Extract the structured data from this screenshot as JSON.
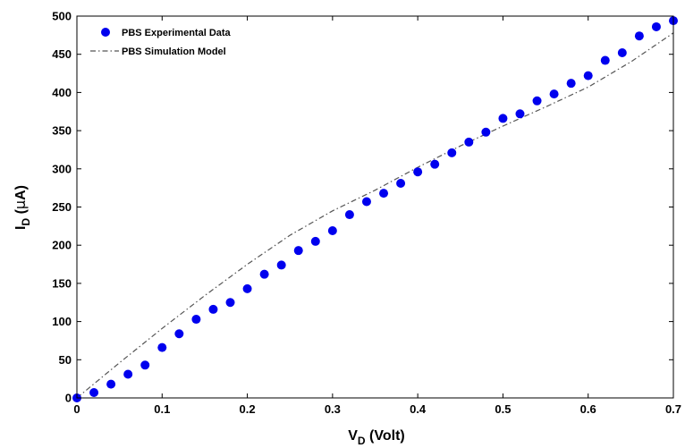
{
  "chart_data": {
    "type": "scatter",
    "title": "",
    "xlabel": {
      "main": "V",
      "sub": "D",
      "rest": " (Volt)"
    },
    "ylabel": {
      "main": "I",
      "sub": "D",
      "rest": " (",
      "mu": "μ",
      "unit": "A)"
    },
    "xlim": [
      0,
      0.7
    ],
    "ylim": [
      0,
      500
    ],
    "xticks": [
      0,
      0.1,
      0.2,
      0.3,
      0.4,
      0.5,
      0.6,
      0.7
    ],
    "xtick_labels": [
      "0",
      "0.1",
      "0.2",
      "0.3",
      "0.4",
      "0.5",
      "0.6",
      "0.7"
    ],
    "yticks": [
      0,
      50,
      100,
      150,
      200,
      250,
      300,
      350,
      400,
      450,
      500
    ],
    "ytick_labels": [
      "0",
      "50",
      "100",
      "150",
      "200",
      "250",
      "300",
      "350",
      "400",
      "450",
      "500"
    ],
    "grid": false,
    "legend_position": "top-left",
    "series": [
      {
        "name": "PBS Experimental Data",
        "type": "scatter",
        "color": "#0000ee",
        "x": [
          0,
          0.02,
          0.04,
          0.06,
          0.08,
          0.1,
          0.12,
          0.14,
          0.16,
          0.18,
          0.2,
          0.22,
          0.24,
          0.26,
          0.28,
          0.3,
          0.32,
          0.34,
          0.36,
          0.38,
          0.4,
          0.42,
          0.44,
          0.46,
          0.48,
          0.5,
          0.52,
          0.54,
          0.56,
          0.58,
          0.6,
          0.62,
          0.64,
          0.66,
          0.68,
          0.7
        ],
        "y": [
          0,
          7,
          18,
          31,
          43,
          66,
          84,
          103,
          116,
          125,
          143,
          162,
          174,
          193,
          205,
          219,
          240,
          257,
          268,
          281,
          296,
          306,
          321,
          335,
          348,
          366,
          372,
          389,
          398,
          412,
          422,
          442,
          452,
          474,
          486,
          494
        ]
      },
      {
        "name": "PBS Simulation Model",
        "type": "line",
        "style": "dash-dot",
        "color": "#555555",
        "x": [
          0,
          0.05,
          0.1,
          0.15,
          0.2,
          0.25,
          0.3,
          0.35,
          0.4,
          0.45,
          0.5,
          0.55,
          0.6,
          0.65,
          0.7
        ],
        "y": [
          0,
          46,
          91,
          134,
          175,
          213,
          245,
          272,
          302,
          330,
          356,
          381,
          407,
          440,
          478
        ]
      }
    ]
  }
}
